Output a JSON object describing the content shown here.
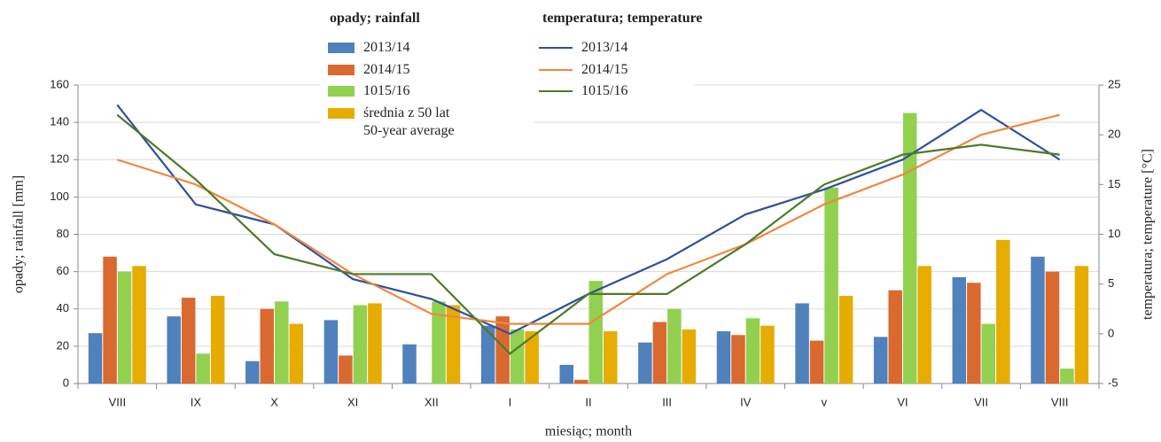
{
  "chart_data": {
    "type": "bar+line",
    "legend_titles": [
      "opady; rainfall",
      "temperatura; temperature"
    ],
    "xlabel": "miesiąc; month",
    "ylabel": "opady; rainfall [mm]",
    "y2label": "temperatura; temperature [°C]",
    "categories": [
      "VIII",
      "IX",
      "X",
      "XI",
      "XII",
      "I",
      "II",
      "III",
      "IV",
      "v",
      "VI",
      "VII",
      "VIII"
    ],
    "ylim": [
      0,
      160
    ],
    "yticks": [
      0,
      20,
      40,
      60,
      80,
      100,
      120,
      140,
      160
    ],
    "y2lim": [
      -5,
      25
    ],
    "y2ticks": [
      -5,
      0,
      5,
      10,
      15,
      20,
      25
    ],
    "grid": true,
    "series": [
      {
        "name": "2013/14",
        "type": "bar",
        "color": "#4f81bd",
        "values": [
          27,
          36,
          12,
          34,
          21,
          31,
          10,
          22,
          28,
          43,
          25,
          57,
          68
        ]
      },
      {
        "name": "2014/15",
        "type": "bar",
        "color": "#d9692f",
        "values": [
          68,
          46,
          40,
          15,
          0,
          36,
          2,
          33,
          26,
          23,
          50,
          54,
          60
        ]
      },
      {
        "name": "1015/16",
        "type": "bar",
        "color": "#92d050",
        "values": [
          60,
          16,
          44,
          42,
          44,
          29,
          55,
          40,
          35,
          105,
          145,
          32,
          8
        ]
      },
      {
        "name": "średnia z 50 lat\n50-year average",
        "type": "bar",
        "color": "#e6ac00",
        "values": [
          63,
          47,
          32,
          43,
          42,
          28,
          28,
          29,
          31,
          47,
          63,
          77,
          63
        ]
      },
      {
        "name": "2013/14",
        "type": "line",
        "axis": "y2",
        "color": "#2e4f9f",
        "values": [
          23,
          13,
          11,
          5.5,
          3.5,
          0,
          4,
          7.5,
          12,
          14.5,
          17.5,
          22.5,
          17.5
        ]
      },
      {
        "name": "2014/15",
        "type": "line",
        "axis": "y2",
        "color": "#f0883e",
        "values": [
          17.5,
          15,
          11,
          6,
          2,
          1,
          1,
          6,
          9,
          13,
          16,
          20,
          22
        ]
      },
      {
        "name": "1015/16",
        "type": "line",
        "axis": "y2",
        "color": "#4f7a28",
        "values": [
          22,
          15.5,
          8,
          6,
          6,
          -2,
          4,
          4,
          9,
          15,
          18,
          19,
          18
        ]
      }
    ]
  }
}
